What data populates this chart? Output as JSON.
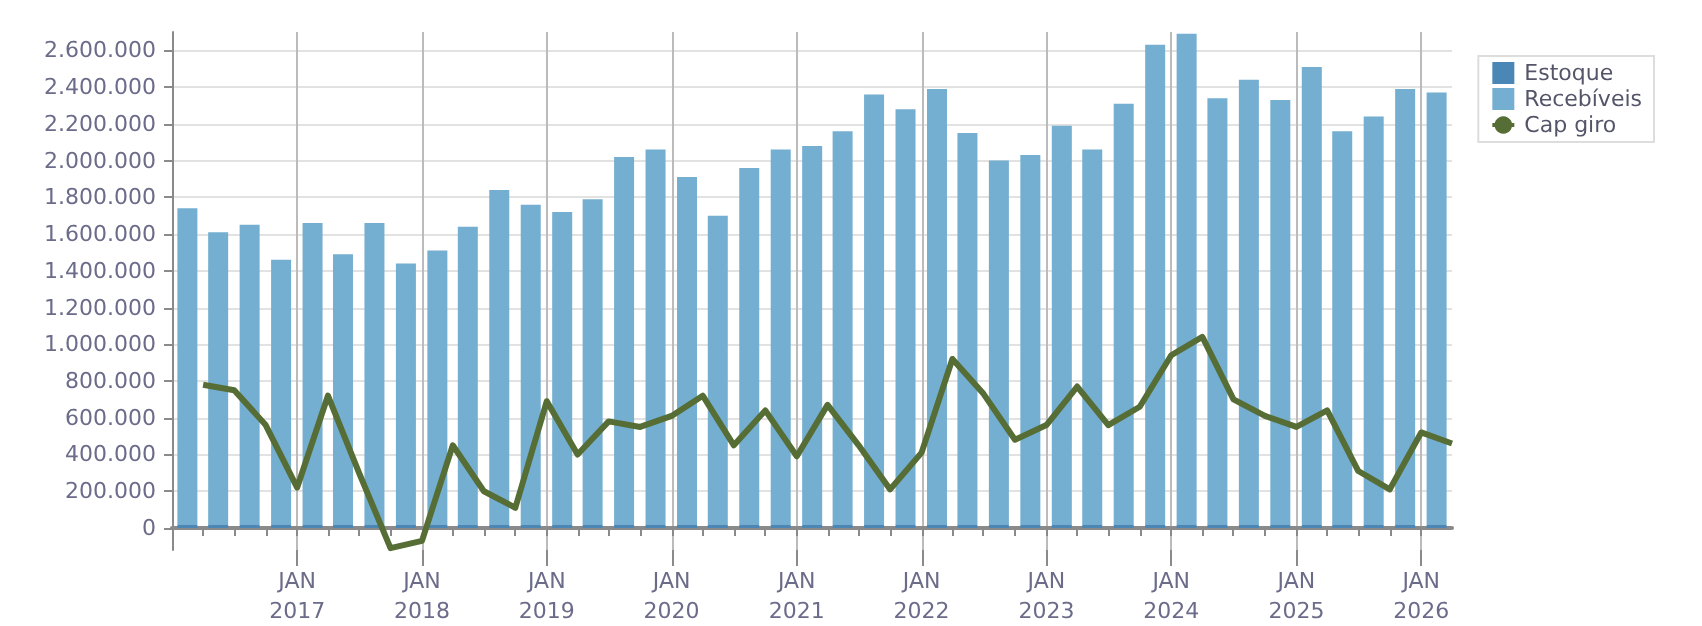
{
  "chart_data": {
    "type": "bar",
    "stacked": true,
    "grid": true,
    "legend": "top right",
    "marker": "none",
    "x": [
      "2016-02-15",
      "2016-05-15",
      "2016-08-15",
      "2016-11-15",
      "2017-02-15",
      "2017-05-15",
      "2017-08-15",
      "2017-11-15",
      "2018-02-15",
      "2018-05-15",
      "2018-08-15",
      "2018-11-15",
      "2019-02-15",
      "2019-05-15",
      "2019-08-15",
      "2019-11-15",
      "2020-02-15",
      "2020-05-15",
      "2020-08-15",
      "2020-11-15",
      "2021-02-15",
      "2021-05-15",
      "2021-08-15",
      "2021-11-15",
      "2022-02-15",
      "2022-05-15",
      "2022-08-15",
      "2022-11-15",
      "2023-02-15",
      "2023-05-15",
      "2023-08-15",
      "2023-11-15",
      "2024-02-15",
      "2024-05-15",
      "2024-08-15",
      "2024-11-15",
      "2025-02-15",
      "2025-05-15",
      "2025-08-15",
      "2025-11-15",
      "2026-02-15"
    ],
    "series": [
      {
        "name": "Estoque",
        "color": "#4a87b6",
        "values": [
          20000,
          20000,
          20000,
          20000,
          20000,
          20000,
          20000,
          20000,
          20000,
          20000,
          20000,
          20000,
          20000,
          20000,
          20000,
          20000,
          20000,
          20000,
          20000,
          20000,
          20000,
          20000,
          20000,
          20000,
          20000,
          20000,
          20000,
          20000,
          20000,
          20000,
          20000,
          20000,
          20000,
          20000,
          20000,
          20000,
          20000,
          20000,
          20000,
          20000,
          20000
        ]
      },
      {
        "name": "Recebíveis",
        "color": "#74aed0",
        "values": [
          1720000,
          1590000,
          1630000,
          1440000,
          1640000,
          1470000,
          1640000,
          1420000,
          1490000,
          1620000,
          1820000,
          1740000,
          1700000,
          1770000,
          2000000,
          2040000,
          1890000,
          1680000,
          1940000,
          2040000,
          2060000,
          2140000,
          2340000,
          2260000,
          2370000,
          2130000,
          1980000,
          2010000,
          2170000,
          2040000,
          2290000,
          2610000,
          2670000,
          2320000,
          2420000,
          2310000,
          2490000,
          2140000,
          2220000,
          2370000,
          2350000
        ]
      },
      {
        "name": "Cap giro",
        "type": "line",
        "color": "#566d35",
        "x": [
          "2016-04-01",
          "2016-07-01",
          "2016-10-01",
          "2017-01-01",
          "2017-04-01",
          "2017-07-01",
          "2017-10-01",
          "2018-01-01",
          "2018-04-01",
          "2018-07-01",
          "2018-10-01",
          "2019-01-01",
          "2019-04-01",
          "2019-07-01",
          "2019-10-01",
          "2020-01-01",
          "2020-04-01",
          "2020-07-01",
          "2020-10-01",
          "2021-01-01",
          "2021-04-01",
          "2021-07-01",
          "2021-10-01",
          "2022-01-01",
          "2022-04-01",
          "2022-07-01",
          "2022-10-01",
          "2023-01-01",
          "2023-04-01",
          "2023-07-01",
          "2023-10-01",
          "2024-01-01",
          "2024-04-01",
          "2024-07-01",
          "2024-10-01",
          "2025-01-01",
          "2025-04-01",
          "2025-07-01",
          "2025-10-01",
          "2026-01-01",
          "2026-04-01"
        ],
        "values": [
          780000,
          750000,
          560000,
          220000,
          720000,
          300000,
          -110000,
          -70000,
          450000,
          200000,
          110000,
          690000,
          400000,
          580000,
          550000,
          610000,
          720000,
          450000,
          640000,
          390000,
          670000,
          450000,
          210000,
          410000,
          920000,
          730000,
          480000,
          560000,
          770000,
          560000,
          660000,
          940000,
          1040000,
          700000,
          610000,
          550000,
          640000,
          310000,
          210000,
          520000,
          460000
        ]
      }
    ],
    "xlim": [
      "2016-01-01",
      "2026-04-01"
    ],
    "xticks": [
      {
        "value": "2016-04-01",
        "label": null
      },
      {
        "value": "2016-07-01",
        "label": null
      },
      {
        "value": "2016-10-01",
        "label": null
      },
      {
        "value": "2017-01-01",
        "label": "JAN\n2017"
      },
      {
        "value": "2017-04-01",
        "label": null
      },
      {
        "value": "2017-07-01",
        "label": null
      },
      {
        "value": "2017-10-01",
        "label": null
      },
      {
        "value": "2018-01-01",
        "label": "JAN\n2018"
      },
      {
        "value": "2018-04-01",
        "label": null
      },
      {
        "value": "2018-07-01",
        "label": null
      },
      {
        "value": "2018-10-01",
        "label": null
      },
      {
        "value": "2019-01-01",
        "label": "JAN\n2019"
      },
      {
        "value": "2019-04-01",
        "label": null
      },
      {
        "value": "2019-07-01",
        "label": null
      },
      {
        "value": "2019-10-01",
        "label": null
      },
      {
        "value": "2020-01-01",
        "label": "JAN\n2020"
      },
      {
        "value": "2020-04-01",
        "label": null
      },
      {
        "value": "2020-07-01",
        "label": null
      },
      {
        "value": "2020-10-01",
        "label": null
      },
      {
        "value": "2021-01-01",
        "label": "JAN\n2021"
      },
      {
        "value": "2021-04-01",
        "label": null
      },
      {
        "value": "2021-07-01",
        "label": null
      },
      {
        "value": "2021-10-01",
        "label": null
      },
      {
        "value": "2022-01-01",
        "label": "JAN\n2022"
      },
      {
        "value": "2022-04-01",
        "label": null
      },
      {
        "value": "2022-07-01",
        "label": null
      },
      {
        "value": "2022-10-01",
        "label": null
      },
      {
        "value": "2023-01-01",
        "label": "JAN\n2023"
      },
      {
        "value": "2023-04-01",
        "label": null
      },
      {
        "value": "2023-07-01",
        "label": null
      },
      {
        "value": "2023-10-01",
        "label": null
      },
      {
        "value": "2024-01-01",
        "label": "JAN\n2024"
      },
      {
        "value": "2024-04-01",
        "label": null
      },
      {
        "value": "2024-07-01",
        "label": null
      },
      {
        "value": "2024-10-01",
        "label": null
      },
      {
        "value": "2025-01-01",
        "label": "JAN\n2025"
      },
      {
        "value": "2025-04-01",
        "label": null
      },
      {
        "value": "2025-07-01",
        "label": null
      },
      {
        "value": "2025-10-01",
        "label": null
      },
      {
        "value": "2026-01-01",
        "label": "JAN\n2026"
      }
    ],
    "ylim": [
      -120000,
      2700000
    ],
    "yticks": [
      {
        "value": 0,
        "label": "0"
      },
      {
        "value": 200000,
        "label": "200.000"
      },
      {
        "value": 400000,
        "label": "400.000"
      },
      {
        "value": 600000,
        "label": "600.000"
      },
      {
        "value": 800000,
        "label": "800.000"
      },
      {
        "value": 1000000,
        "label": "1.000.000"
      },
      {
        "value": 1200000,
        "label": "1.200.000"
      },
      {
        "value": 1400000,
        "label": "1.400.000"
      },
      {
        "value": 1600000,
        "label": "1.600.000"
      },
      {
        "value": 1800000,
        "label": "1.800.000"
      },
      {
        "value": 2000000,
        "label": "2.000.000"
      },
      {
        "value": 2200000,
        "label": "2.200.000"
      },
      {
        "value": 2400000,
        "label": "2.400.000"
      },
      {
        "value": 2600000,
        "label": "2.600.000"
      }
    ]
  }
}
